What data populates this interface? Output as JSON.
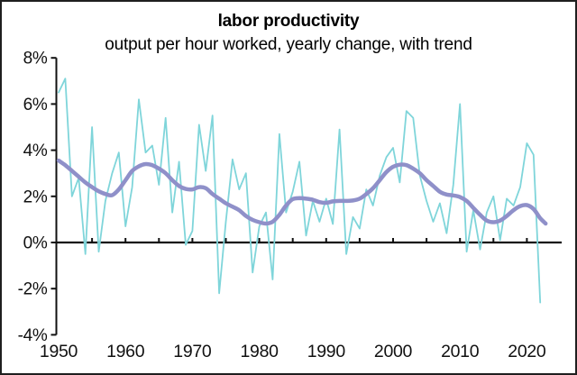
{
  "window": {
    "background": "#ffffff",
    "border_color": "#1f1f1f"
  },
  "header": {
    "title": "labor productivity",
    "subtitle": "output per hour worked, yearly change, with trend"
  },
  "chart_data": {
    "type": "line",
    "title": "labor productivity",
    "subtitle": "output per hour worked, yearly change, with trend",
    "xlabel": "",
    "ylabel": "",
    "xlim": [
      1950,
      2023
    ],
    "ylim": [
      -4,
      8
    ],
    "grid": false,
    "legend_position": "none",
    "axis_color": "#111111",
    "baseline_value": 0,
    "y_axis": {
      "tick_labels": [
        "8%",
        "6%",
        "4%",
        "2%",
        "0%",
        "-2%",
        "-4%"
      ],
      "tick_values": [
        8,
        6,
        4,
        2,
        0,
        -2,
        -4
      ]
    },
    "x_axis": {
      "tick_labels": [
        "1950",
        "1960",
        "1970",
        "1980",
        "1990",
        "2000",
        "2010",
        "2020"
      ],
      "tick_years": [
        1950,
        1960,
        1970,
        1980,
        1990,
        2000,
        2010,
        2020
      ],
      "minor_tick_years": [
        1955,
        1960,
        1965,
        1970,
        1975,
        1980,
        1985,
        1990,
        1995,
        2000,
        2005,
        2010,
        2015,
        2020
      ]
    },
    "series": [
      {
        "name": "yearly change",
        "color": "#7fd5da",
        "stroke_width": 1.8,
        "smooth": false,
        "x": [
          1950,
          1951,
          1952,
          1953,
          1954,
          1955,
          1956,
          1957,
          1958,
          1959,
          1960,
          1961,
          1962,
          1963,
          1964,
          1965,
          1966,
          1967,
          1968,
          1969,
          1970,
          1971,
          1972,
          1973,
          1974,
          1975,
          1976,
          1977,
          1978,
          1979,
          1980,
          1981,
          1982,
          1983,
          1984,
          1985,
          1986,
          1987,
          1988,
          1989,
          1990,
          1991,
          1992,
          1993,
          1994,
          1995,
          1996,
          1997,
          1998,
          1999,
          2000,
          2001,
          2002,
          2003,
          2004,
          2005,
          2006,
          2007,
          2008,
          2009,
          2010,
          2011,
          2012,
          2013,
          2014,
          2015,
          2016,
          2017,
          2018,
          2019,
          2020,
          2021,
          2022
        ],
        "values": [
          6.5,
          7.1,
          2.0,
          2.8,
          -0.5,
          5.0,
          -0.4,
          1.8,
          3.0,
          3.9,
          0.7,
          2.4,
          6.2,
          3.9,
          4.2,
          2.5,
          5.4,
          1.3,
          3.5,
          -0.1,
          0.5,
          5.1,
          3.1,
          5.5,
          -2.2,
          0.9,
          3.6,
          2.3,
          3.0,
          -1.3,
          0.7,
          1.3,
          -1.6,
          4.7,
          1.3,
          2.2,
          3.5,
          0.3,
          1.8,
          0.9,
          1.9,
          0.8,
          4.9,
          -0.5,
          1.1,
          0.6,
          2.3,
          1.6,
          2.9,
          3.7,
          4.1,
          2.6,
          5.7,
          5.4,
          2.9,
          1.8,
          0.9,
          1.7,
          0.4,
          2.5,
          6.0,
          -0.4,
          1.4,
          -0.3,
          1.3,
          2.0,
          0.1,
          1.9,
          1.6,
          2.4,
          4.3,
          3.8,
          -2.6
        ]
      },
      {
        "name": "trend",
        "color": "#8f90c9",
        "stroke_width": 4.5,
        "smooth": true,
        "x": [
          1950,
          1951,
          1952,
          1953,
          1954,
          1955,
          1956,
          1957,
          1958,
          1959,
          1960,
          1961,
          1962,
          1963,
          1964,
          1965,
          1966,
          1967,
          1968,
          1969,
          1970,
          1971,
          1972,
          1973,
          1974,
          1975,
          1976,
          1977,
          1978,
          1979,
          1980,
          1981,
          1982,
          1983,
          1984,
          1985,
          1986,
          1987,
          1988,
          1989,
          1990,
          1991,
          1992,
          1993,
          1994,
          1995,
          1996,
          1997,
          1998,
          1999,
          2000,
          2001,
          2002,
          2003,
          2004,
          2005,
          2006,
          2007,
          2008,
          2009,
          2010,
          2011,
          2012,
          2013,
          2014,
          2015,
          2016,
          2017,
          2018,
          2019,
          2020,
          2021,
          2022,
          2022.8
        ],
        "values": [
          3.55,
          3.35,
          3.1,
          2.85,
          2.6,
          2.4,
          2.22,
          2.1,
          2.05,
          2.3,
          2.7,
          3.1,
          3.3,
          3.4,
          3.35,
          3.2,
          3.0,
          2.7,
          2.45,
          2.32,
          2.3,
          2.4,
          2.35,
          2.1,
          1.9,
          1.7,
          1.55,
          1.4,
          1.15,
          0.98,
          0.88,
          0.82,
          0.9,
          1.2,
          1.6,
          1.88,
          1.92,
          1.9,
          1.85,
          1.75,
          1.72,
          1.78,
          1.8,
          1.8,
          1.82,
          1.9,
          2.1,
          2.35,
          2.7,
          3.05,
          3.28,
          3.37,
          3.35,
          3.2,
          3.0,
          2.7,
          2.45,
          2.2,
          2.08,
          2.04,
          1.97,
          1.8,
          1.5,
          1.2,
          0.95,
          0.88,
          0.95,
          1.15,
          1.4,
          1.58,
          1.62,
          1.45,
          1.05,
          0.82
        ]
      }
    ]
  }
}
